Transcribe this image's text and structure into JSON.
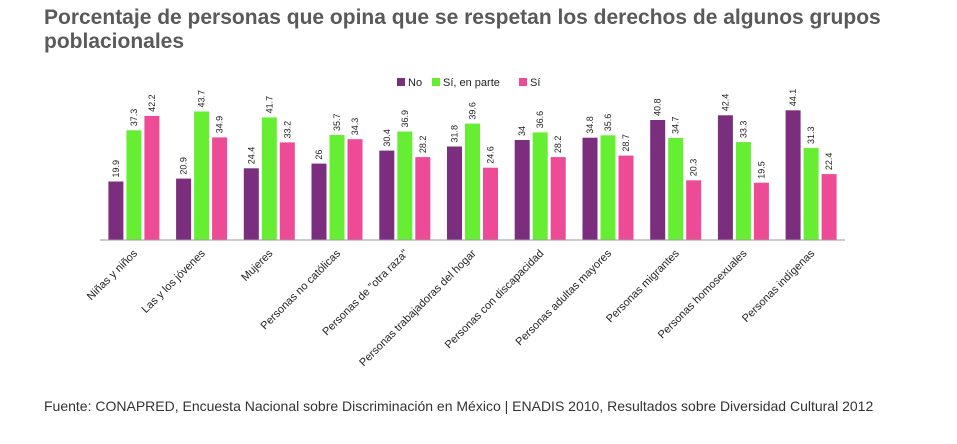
{
  "header": {
    "title": "Porcentaje de personas que opina que se respetan los derechos de algunos grupos poblacionales"
  },
  "footer": {
    "source": "Fuente: CONAPRED, Encuesta Nacional sobre Discriminación en México | ENADIS 2010,  Resultados sobre Diversidad Cultural 2012"
  },
  "colors": {
    "no": "#7b2d7e",
    "si_en_parte": "#66ee33",
    "si": "#ee4b96",
    "axis": "#999999"
  },
  "chart_data": {
    "type": "bar",
    "title": "Porcentaje de personas que opina que se respetan los derechos de algunos grupos poblacionales",
    "xlabel": "",
    "ylabel": "",
    "ylim": [
      0,
      50
    ],
    "grid": false,
    "legend_position": "top-center",
    "categories": [
      "Niñas y niños",
      "Las y los jóvenes",
      "Mujeres",
      "Personas no católicas",
      "Personas de \"otra raza\"",
      "Personas trabajadoras del hogar",
      "Personas con discapacidad",
      "Personas adultas mayores",
      "Personas migrantes",
      "Personas homosexuales",
      "Personas indígenas"
    ],
    "series": [
      {
        "name": "No",
        "color": "#7b2d7e",
        "values": [
          19.9,
          20.9,
          24.4,
          26,
          30.4,
          31.8,
          34,
          34.8,
          40.8,
          42.4,
          44.1
        ]
      },
      {
        "name": "Sí, en parte",
        "color": "#66ee33",
        "values": [
          37.3,
          43.7,
          41.7,
          35.7,
          36.9,
          39.6,
          36.6,
          35.6,
          34.7,
          33.3,
          31.3
        ]
      },
      {
        "name": "Sí",
        "color": "#ee4b96",
        "values": [
          42.2,
          34.9,
          33.2,
          34.3,
          28.2,
          24.6,
          28.2,
          28.7,
          20.3,
          19.5,
          22.4
        ]
      }
    ]
  }
}
